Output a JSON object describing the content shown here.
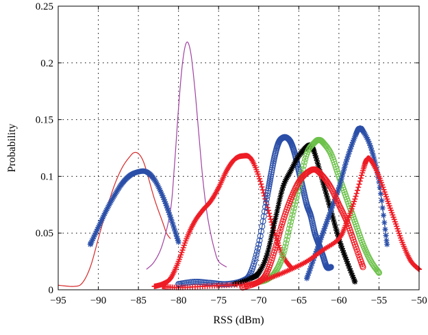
{
  "chart_data": {
    "type": "line",
    "xlabel": "RSS (dBm)",
    "ylabel": "Probability",
    "xlim": [
      -95,
      -50
    ],
    "ylim": [
      0,
      0.25
    ],
    "grid": true,
    "x_ticks": [
      -95,
      -90,
      -85,
      -80,
      -75,
      -70,
      -65,
      -60,
      -55,
      -50
    ],
    "x_tick_labels": [
      "−95",
      "−90",
      "−85",
      "−80",
      "−75",
      "−70",
      "−65",
      "−60",
      "−55",
      "−50"
    ],
    "y_ticks": [
      0,
      0.05,
      0.1,
      0.15,
      0.2,
      0.25
    ],
    "y_tick_labels": [
      "0",
      "0.05",
      "0.1",
      "0.15",
      "0.2",
      "0.25"
    ],
    "series": [
      {
        "color": "#d62728",
        "marker": "none",
        "x": [
          -95,
          -93,
          -92,
          -91,
          -90,
          -89,
          -88,
          -87,
          -86,
          -85.5,
          -85,
          -84.5,
          -84,
          -83,
          -82,
          -81.5,
          -81
        ],
        "y": [
          0.004,
          0.003,
          0.006,
          0.02,
          0.045,
          0.07,
          0.092,
          0.108,
          0.118,
          0.121,
          0.12,
          0.115,
          0.105,
          0.08,
          0.06,
          0.05,
          0.045
        ]
      },
      {
        "color": "#a040a0",
        "marker": "none",
        "x": [
          -84,
          -83,
          -82,
          -81,
          -80.5,
          -80,
          -79.5,
          -79,
          -78.5,
          -78,
          -77.5,
          -77,
          -76.5,
          -76,
          -75.5,
          -75,
          -74
        ],
        "y": [
          0.018,
          0.025,
          0.04,
          0.07,
          0.11,
          0.16,
          0.2,
          0.218,
          0.21,
          0.18,
          0.14,
          0.1,
          0.07,
          0.05,
          0.035,
          0.025,
          0.02
        ]
      },
      {
        "color": "#2b4fa8",
        "marker": "*",
        "x": [
          -91,
          -90,
          -89,
          -88,
          -87,
          -86,
          -85,
          -84,
          -83,
          -82,
          -81,
          -80
        ],
        "y": [
          0.04,
          0.055,
          0.07,
          0.083,
          0.094,
          0.101,
          0.104,
          0.104,
          0.097,
          0.083,
          0.064,
          0.042
        ]
      },
      {
        "color": "#ee1c25",
        "marker": "+",
        "x": [
          -83,
          -82,
          -81,
          -80,
          -79,
          -78,
          -77,
          -76,
          -75,
          -74,
          -73,
          -72,
          -71,
          -70,
          -69,
          -68,
          -67,
          -66
        ],
        "y": [
          0.003,
          0.005,
          0.01,
          0.025,
          0.045,
          0.06,
          0.07,
          0.078,
          0.09,
          0.105,
          0.115,
          0.118,
          0.116,
          0.1,
          0.075,
          0.05,
          0.03,
          0.02
        ]
      },
      {
        "color": "#2b4fa8",
        "marker": "o",
        "x": [
          -80,
          -78,
          -76,
          -74,
          -72,
          -71,
          -70,
          -69,
          -68.5,
          -68,
          -67.5,
          -67,
          -66.5,
          -66,
          -65.5,
          -65,
          -64.5,
          -64,
          -63.5,
          -63,
          -62.5,
          -62,
          -61.5,
          -61
        ],
        "y": [
          0.005,
          0.007,
          0.006,
          0.005,
          0.008,
          0.015,
          0.04,
          0.08,
          0.1,
          0.118,
          0.13,
          0.134,
          0.134,
          0.13,
          0.12,
          0.105,
          0.09,
          0.075,
          0.065,
          0.05,
          0.04,
          0.03,
          0.02,
          0.02
        ]
      },
      {
        "color": "#000000",
        "marker": "*",
        "x": [
          -73,
          -71,
          -70,
          -69,
          -68,
          -67,
          -66,
          -65,
          -64,
          -63.5,
          -63,
          -62,
          -61,
          -60,
          -59,
          -58
        ],
        "y": [
          0.005,
          0.01,
          0.015,
          0.03,
          0.06,
          0.09,
          0.105,
          0.118,
          0.126,
          0.127,
          0.12,
          0.095,
          0.07,
          0.045,
          0.025,
          0.007
        ]
      },
      {
        "color": "#6dc24b",
        "marker": "o",
        "x": [
          -70,
          -69,
          -68,
          -67,
          -66,
          -65,
          -64,
          -63,
          -62.5,
          -62,
          -61,
          -60,
          -59,
          -58,
          -57,
          -56,
          -55
        ],
        "y": [
          0.007,
          0.009,
          0.015,
          0.03,
          0.06,
          0.09,
          0.12,
          0.13,
          0.132,
          0.13,
          0.12,
          0.1,
          0.08,
          0.06,
          0.04,
          0.025,
          0.015
        ]
      },
      {
        "color": "#2b4fa8",
        "marker": "*",
        "x": [
          -64,
          -63,
          -62,
          -61,
          -60,
          -59,
          -58,
          -57.5,
          -57,
          -56,
          -55,
          -54
        ],
        "y": [
          0.01,
          0.03,
          0.05,
          0.07,
          0.09,
          0.115,
          0.135,
          0.142,
          0.14,
          0.125,
          0.095,
          0.04
        ]
      },
      {
        "color": "#ee1c25",
        "marker": "o",
        "x": [
          -72,
          -70,
          -69,
          -68,
          -67,
          -66,
          -65,
          -64,
          -63,
          -62,
          -61,
          -60,
          -59,
          -58,
          -57
        ],
        "y": [
          0.002,
          0.007,
          0.015,
          0.035,
          0.06,
          0.08,
          0.095,
          0.103,
          0.106,
          0.1,
          0.09,
          0.075,
          0.06,
          0.04,
          0.02
        ]
      },
      {
        "color": "#ee1c25",
        "marker": "+",
        "x": [
          -82,
          -80,
          -77,
          -74,
          -71,
          -70,
          -68,
          -66,
          -64,
          -62,
          -60,
          -59,
          -58,
          -57,
          -56.5,
          -56,
          -55,
          -54,
          -53,
          -52,
          -51,
          -50
        ],
        "y": [
          0.003,
          0.002,
          0.003,
          0.004,
          0.005,
          0.007,
          0.012,
          0.018,
          0.025,
          0.035,
          0.045,
          0.06,
          0.08,
          0.105,
          0.115,
          0.114,
          0.1,
          0.08,
          0.06,
          0.04,
          0.025,
          0.018
        ]
      }
    ]
  }
}
